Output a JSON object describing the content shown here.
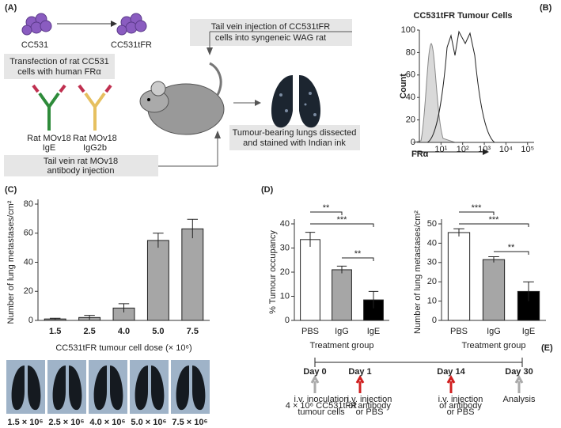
{
  "panel_a": {
    "label": "(A)",
    "cell_1": "CC531",
    "cell_2": "CC531tFR",
    "transfection": [
      "Transfection of rat CC531",
      "cells with human FRα"
    ],
    "antibody_1": [
      "Rat MOv18",
      "IgE"
    ],
    "antibody_2": [
      "Rat MOv18",
      "IgG2b"
    ],
    "antibody_injection": [
      "Tail vein rat MOv18",
      "antibody injection"
    ],
    "cell_injection": [
      "Tail vein injection of CC531tFR",
      "cells into syngeneic WAG rat"
    ],
    "lungs": [
      "Tumour-bearing lungs dissected",
      "and stained with Indian ink"
    ]
  },
  "panel_b": {
    "label": "(B)",
    "title": "CC531tFR Tumour Cells",
    "ylabel": "Count",
    "xlabel": "FRα",
    "ylim": [
      0,
      100
    ],
    "yticks": [
      0,
      20,
      40,
      60,
      80,
      100
    ],
    "xscale": "log",
    "xlim": [
      1,
      200000
    ],
    "xticks": [
      {
        "value": 10,
        "label": "10¹"
      },
      {
        "value": 100,
        "label": "10²"
      },
      {
        "value": 1000,
        "label": "10³"
      },
      {
        "value": 10000,
        "label": "10⁴"
      },
      {
        "value": 100000,
        "label": "10⁵"
      }
    ]
  },
  "chart_data": [
    {
      "type": "bar",
      "panel_label": "(C)",
      "ylabel": "Number of lung metastases/cm²",
      "xlabel": "CC531tFR tumour cell dose (× 10⁶)",
      "categories": [
        "1.5",
        "2.5",
        "4.0",
        "5.0",
        "7.5"
      ],
      "values": [
        1,
        2,
        8.5,
        55,
        63
      ],
      "errors": [
        0.5,
        1.5,
        3,
        5,
        6.5
      ],
      "color": "#a6a6a6",
      "ylim": [
        0,
        80
      ],
      "yticks": [
        0,
        20,
        40,
        60,
        80
      ]
    },
    {
      "type": "bar",
      "panel_label": "(D)",
      "ylabel": "% Tumour occupancy",
      "xlabel": "Treatment group",
      "categories": [
        "PBS",
        "IgG",
        "IgE"
      ],
      "values": [
        33.5,
        21,
        8.5
      ],
      "errors": [
        3,
        1.5,
        3.5
      ],
      "colors": [
        "#ffffff",
        "#a6a6a6",
        "#000000"
      ],
      "ylim": [
        0,
        40
      ],
      "yticks": [
        0,
        10,
        20,
        30,
        40
      ],
      "significance": [
        "**",
        "***",
        "**"
      ]
    },
    {
      "type": "bar",
      "ylabel": "Number of lung metastases/cm²",
      "xlabel": "Treatment group",
      "categories": [
        "PBS",
        "IgG",
        "IgE"
      ],
      "values": [
        45.5,
        31.5,
        15
      ],
      "errors": [
        2,
        1.5,
        5
      ],
      "colors": [
        "#ffffff",
        "#a6a6a6",
        "#000000"
      ],
      "ylim": [
        0,
        50
      ],
      "yticks": [
        0,
        10,
        20,
        30,
        40,
        50
      ],
      "significance": [
        "***",
        "***",
        "**"
      ]
    }
  ],
  "lung_images": {
    "labels": [
      "1.5 × 10⁶",
      "2.5 × 10⁶",
      "4.0 × 10⁶",
      "5.0 × 10⁶",
      "7.5 × 10⁶"
    ]
  },
  "panel_e": {
    "label": "(E)",
    "days": [
      "Day 0",
      "Day 1",
      "Day 14",
      "Day 30"
    ],
    "notes": [
      [
        "i.v. inoculation",
        "4 × 10⁶ CC531tFR",
        "tumour cells"
      ],
      [
        "i.v. injection",
        "of antibody",
        "or PBS"
      ],
      [
        "i.v. injection",
        "of antibody",
        "or PBS"
      ],
      [
        "Analysis"
      ]
    ]
  }
}
